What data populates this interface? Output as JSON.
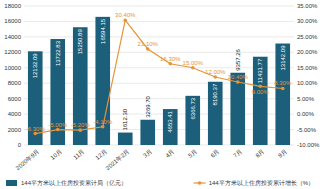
{
  "chart_data": {
    "type": "bar",
    "categories": [
      "2020年9月",
      "10月",
      "11月",
      "12月",
      "2021年2月",
      "3月",
      "4月",
      "5月",
      "6月",
      "7月",
      "8月",
      "9月"
    ],
    "series": [
      {
        "name": "144平方米以上住房投资累计局（亿元）",
        "type": "bar",
        "color": "#1b5f7a",
        "values": [
          12132.09,
          13722.83,
          15250.89,
          16594.15,
          1612.3,
          3269.7,
          4653.41,
          6366.73,
          8190.37,
          9357.26,
          11431.77,
          13142.09
        ],
        "value_labels": [
          "12132.09",
          "13722.83",
          "15250.89",
          "16594.15",
          "1612.30",
          "3269.70",
          "4653.41",
          "6366.73",
          "8190.37",
          "9357.26",
          "11431.77",
          "13142.09"
        ]
      },
      {
        "name": "144平方米以上住房投资累计增长（%）",
        "type": "line",
        "axis": "y2",
        "color": "#e5943a",
        "marker": "circle",
        "line_style": "solid",
        "values": [
          -6.3,
          -5.0,
          -5.2,
          -4.1,
          30.4,
          21.1,
          16.3,
          15.0,
          12.0,
          10.4,
          9.0,
          8.3
        ],
        "value_labels": [
          "-6.30%",
          "-5.00%",
          "-5.20%",
          "-4.10%",
          "30.40%",
          "21.10%",
          "16.30%",
          "15.00%",
          "12.00%",
          "10.40%",
          "9.00%",
          "8.30%"
        ]
      }
    ],
    "ylim": [
      0,
      18000
    ],
    "yticks": [
      0,
      2000,
      4000,
      6000,
      8000,
      10000,
      12000,
      14000,
      16000,
      18000
    ],
    "y2lim": [
      -10.0,
      35.0
    ],
    "y2ticks": [
      {
        "value": -10.0,
        "label": "-10.00%"
      },
      {
        "value": -5.0,
        "label": "-5.00%"
      },
      {
        "value": 0.0,
        "label": "0.00%"
      },
      {
        "value": 5.0,
        "label": "5.00%"
      },
      {
        "value": 10.0,
        "label": "10.00%"
      },
      {
        "value": 15.0,
        "label": "15.00%"
      },
      {
        "value": 20.0,
        "label": "20.00%"
      },
      {
        "value": 25.0,
        "label": "25.00%"
      },
      {
        "value": 30.0,
        "label": "30.00%"
      },
      {
        "value": 35.0,
        "label": "35.00%"
      }
    ],
    "grid": true,
    "data_labels": true,
    "legend": "bottom"
  }
}
